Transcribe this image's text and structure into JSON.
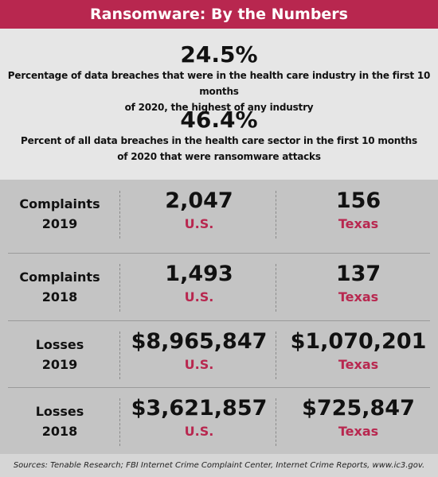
{
  "header": {
    "title": "Ransomware: By the Numbers"
  },
  "stats": [
    {
      "value": "24.5%",
      "line1": "Percentage of data breaches that were in the health care industry in the first 10 months",
      "line2": "of 2020, the highest of any industry"
    },
    {
      "value": "46.4%",
      "line1": "Percent of all data breaches in the health care sector in the first 10 months",
      "line2": "of 2020 that were ransomware attacks"
    }
  ],
  "rows": [
    {
      "label1": "Complaints",
      "label2": "2019",
      "us_value": "2,047",
      "us_label": "U.S.",
      "tx_value": "156",
      "tx_label": "Texas"
    },
    {
      "label1": "Complaints",
      "label2": "2018",
      "us_value": "1,493",
      "us_label": "U.S.",
      "tx_value": "137",
      "tx_label": "Texas"
    },
    {
      "label1": "Losses",
      "label2": "2019",
      "us_value": "$8,965,847",
      "us_label": "U.S.",
      "tx_value": "$1,070,201",
      "tx_label": "Texas"
    },
    {
      "label1": "Losses",
      "label2": "2018",
      "us_value": "$3,621,857",
      "us_label": "U.S.",
      "tx_value": "$725,847",
      "tx_label": "Texas"
    }
  ],
  "source": "Sources: Tenable Research; FBI Internet Crime Complaint Center, Internet Crime Reports, www.ic3.gov.",
  "colors": {
    "accent": "#b8274f",
    "header_bg": "#b8274f",
    "stats_bg": "#e6e6e6",
    "table_bg": "#c4c4c4"
  }
}
